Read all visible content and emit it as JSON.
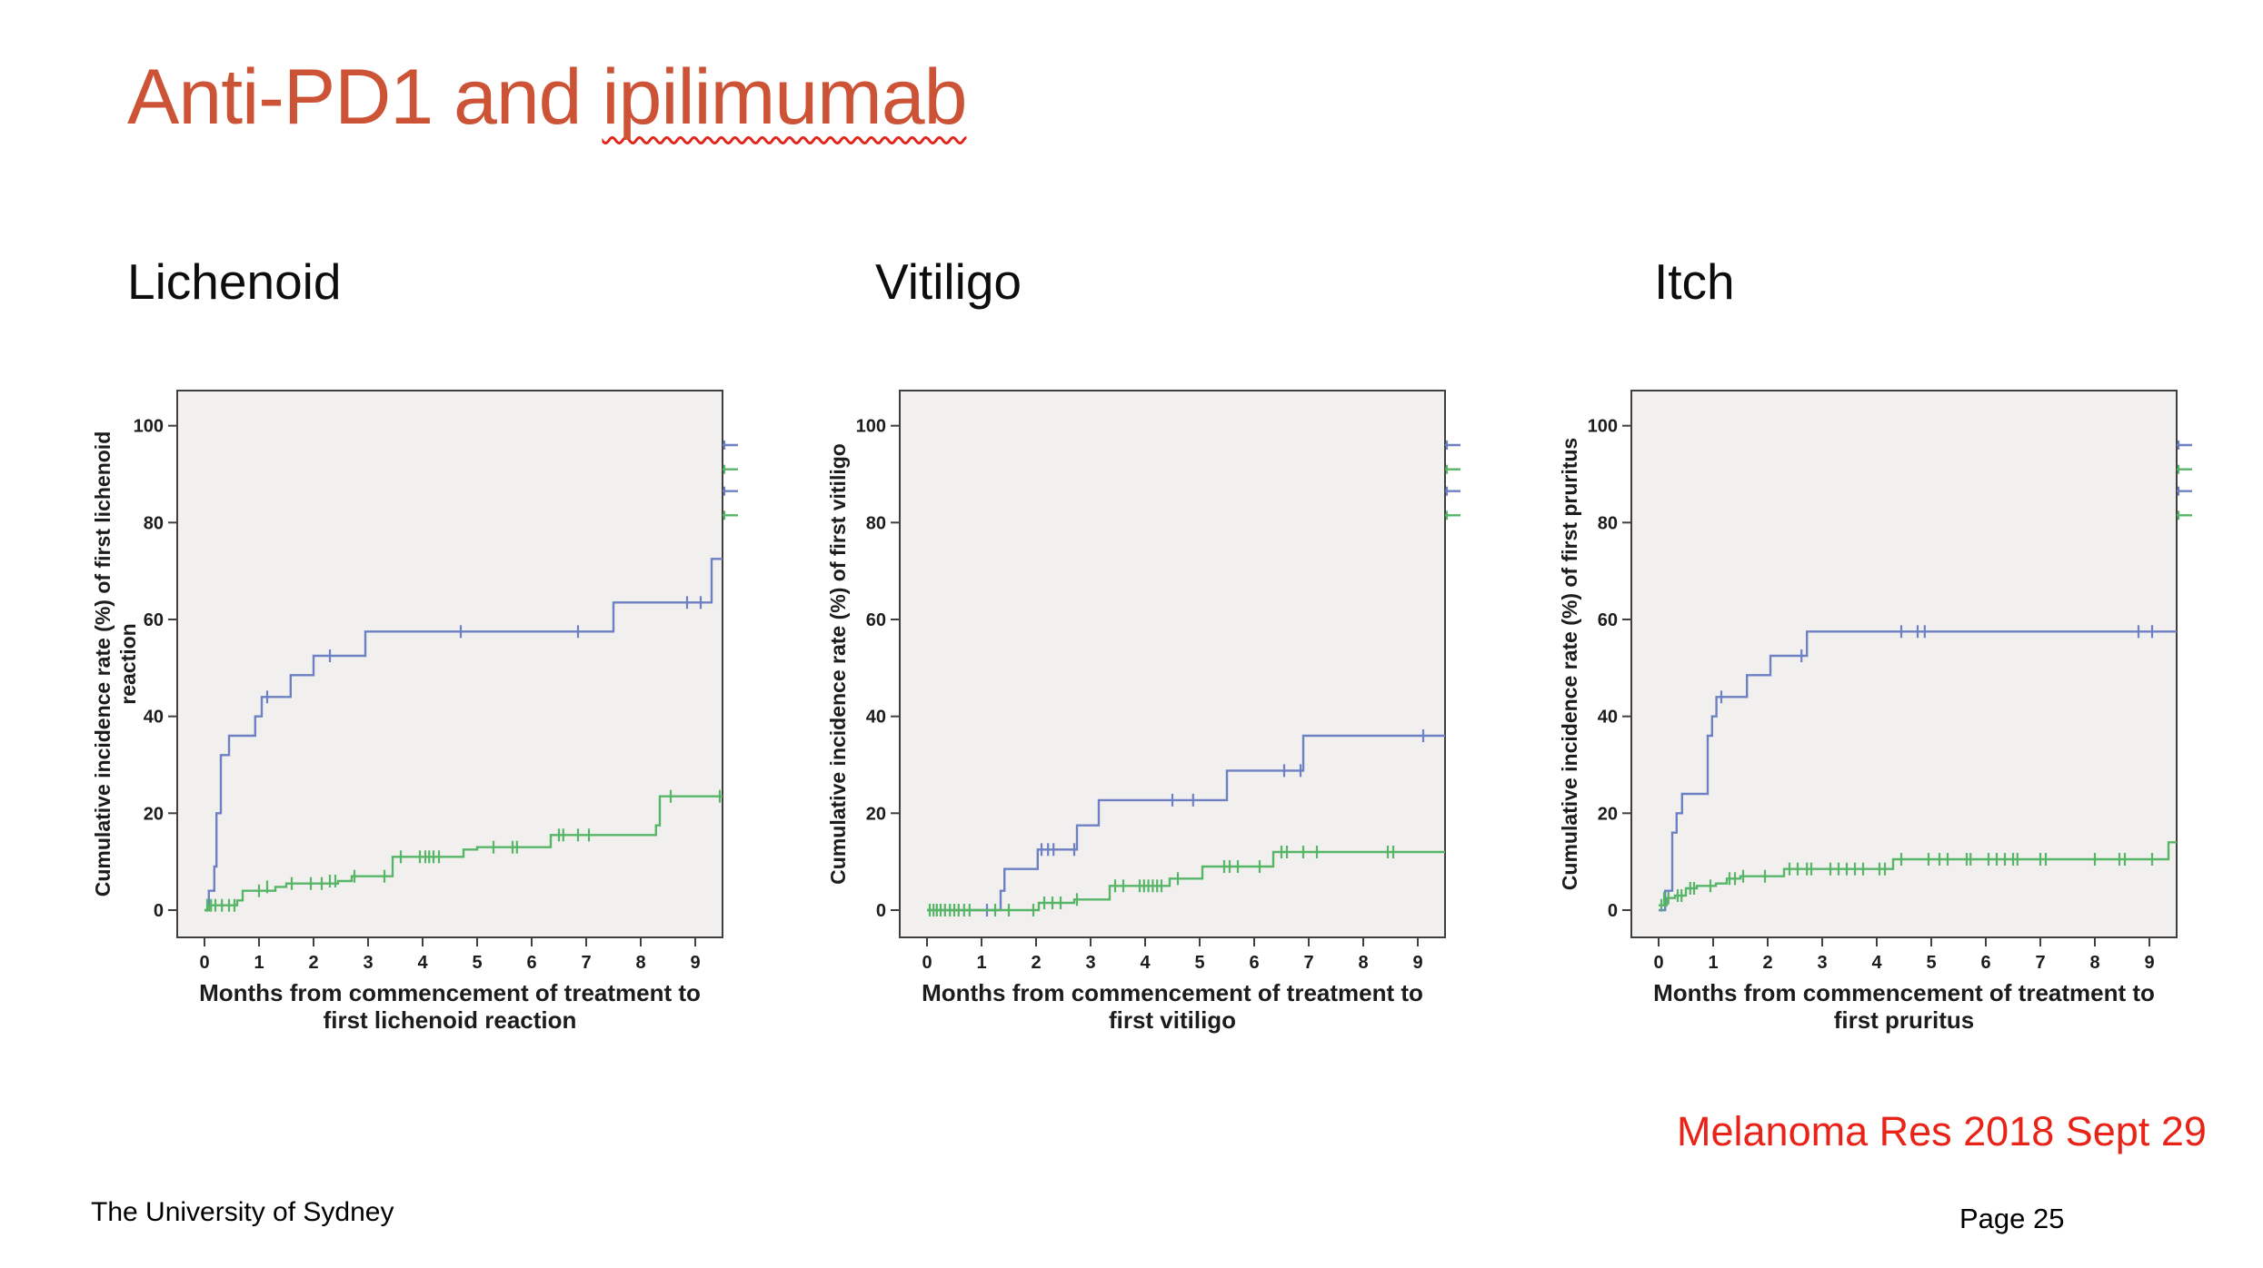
{
  "slide": {
    "title": {
      "prefix": "Anti-PD1 and ",
      "underlined_word": "ipilimumab",
      "color": "#cc5335",
      "squiggle_color": "#e0251a"
    },
    "footer_left": "The University of Sydney",
    "footer_right": "Page 25",
    "citation": {
      "text": "Melanoma Res 2018 Sept 29",
      "color": "#ea2318"
    }
  },
  "colors": {
    "series_blue": "#6d80c3",
    "series_green": "#57b567",
    "plot_bg": "#f1f0ee",
    "plot_border": "#3f3f3f",
    "axis_text": "#1c1c1c"
  },
  "chart_data": [
    {
      "type": "line",
      "section_label": "Lichenoid",
      "ylabel_lines": [
        "Cumulative incidence rate (%) of first lichenoid",
        "reaction"
      ],
      "xlabel_lines": [
        "Months from commencement of treatment to",
        "first lichenoid reaction"
      ],
      "xticks": [
        0,
        1,
        2,
        3,
        4,
        5,
        6,
        7,
        8,
        9
      ],
      "yticks": [
        0,
        20,
        40,
        60,
        80,
        100
      ],
      "xlim": [
        0,
        9.5
      ],
      "ylim": [
        0,
        100
      ],
      "grid": false,
      "series": [
        {
          "name": "blue",
          "steps": [
            [
              0,
              0
            ],
            [
              0.08,
              4
            ],
            [
              0.18,
              9
            ],
            [
              0.22,
              20
            ],
            [
              0.3,
              32
            ],
            [
              0.45,
              36
            ],
            [
              0.93,
              40
            ],
            [
              1.05,
              44
            ],
            [
              1.58,
              48.5
            ],
            [
              2.0,
              52.5
            ],
            [
              2.95,
              57.5
            ],
            [
              7.5,
              63.5
            ],
            [
              9.3,
              72.5
            ]
          ],
          "end_x": 9.5,
          "censors": [
            [
              1.15,
              44
            ],
            [
              2.3,
              52.5
            ],
            [
              4.7,
              57.5
            ],
            [
              6.85,
              57.5
            ],
            [
              8.85,
              63.5
            ],
            [
              9.1,
              63.5
            ]
          ]
        },
        {
          "name": "green",
          "steps": [
            [
              0,
              0
            ],
            [
              0.08,
              1
            ],
            [
              0.6,
              2
            ],
            [
              0.7,
              4
            ],
            [
              1.3,
              4.8
            ],
            [
              1.5,
              5.5
            ],
            [
              2.45,
              6
            ],
            [
              2.7,
              7
            ],
            [
              3.45,
              11
            ],
            [
              4.75,
              12.5
            ],
            [
              5.0,
              13
            ],
            [
              6.35,
              15.5
            ],
            [
              8.28,
              17.5
            ],
            [
              8.35,
              23.5
            ]
          ],
          "end_x": 9.5,
          "censors": [
            [
              0.05,
              1
            ],
            [
              0.12,
              1
            ],
            [
              0.2,
              1
            ],
            [
              0.32,
              1
            ],
            [
              0.45,
              1
            ],
            [
              0.55,
              1
            ],
            [
              1.0,
              4
            ],
            [
              1.15,
              4.8
            ],
            [
              1.6,
              5.5
            ],
            [
              1.95,
              5.5
            ],
            [
              2.15,
              5.5
            ],
            [
              2.3,
              6
            ],
            [
              2.4,
              6
            ],
            [
              2.75,
              7
            ],
            [
              3.3,
              7
            ],
            [
              3.6,
              11
            ],
            [
              3.95,
              11
            ],
            [
              4.05,
              11
            ],
            [
              4.12,
              11
            ],
            [
              4.2,
              11
            ],
            [
              4.3,
              11
            ],
            [
              5.3,
              13
            ],
            [
              5.65,
              13
            ],
            [
              5.73,
              13
            ],
            [
              6.5,
              15.5
            ],
            [
              6.58,
              15.5
            ],
            [
              6.85,
              15.5
            ],
            [
              7.05,
              15.5
            ],
            [
              8.55,
              23.5
            ],
            [
              9.45,
              23.5
            ]
          ]
        }
      ],
      "legend_stubs": [
        {
          "y": 96,
          "series": "blue"
        },
        {
          "y": 91,
          "series": "green"
        },
        {
          "y": 86.5,
          "series": "blue"
        },
        {
          "y": 81.5,
          "series": "green"
        }
      ]
    },
    {
      "type": "line",
      "section_label": "Vitiligo",
      "ylabel_lines": [
        "Cumulative incidence rate (%) of first vitiligo"
      ],
      "xlabel_lines": [
        "Months from commencement of treatment to",
        "first vitiligo"
      ],
      "xticks": [
        0,
        1,
        2,
        3,
        4,
        5,
        6,
        7,
        8,
        9
      ],
      "yticks": [
        0,
        20,
        40,
        60,
        80,
        100
      ],
      "xlim": [
        0,
        9.5
      ],
      "ylim": [
        0,
        100
      ],
      "grid": false,
      "series": [
        {
          "name": "blue",
          "steps": [
            [
              0,
              0
            ],
            [
              1.35,
              4
            ],
            [
              1.42,
              8.5
            ],
            [
              2.03,
              12.5
            ],
            [
              2.75,
              17.5
            ],
            [
              3.15,
              22.7
            ],
            [
              5.5,
              28.8
            ],
            [
              6.9,
              36
            ]
          ],
          "end_x": 9.5,
          "censors": [
            [
              1.1,
              0
            ],
            [
              2.1,
              12.5
            ],
            [
              2.22,
              12.5
            ],
            [
              2.32,
              12.5
            ],
            [
              2.7,
              12.5
            ],
            [
              4.5,
              22.7
            ],
            [
              4.88,
              22.7
            ],
            [
              6.55,
              28.8
            ],
            [
              6.85,
              28.8
            ],
            [
              9.1,
              36
            ]
          ]
        },
        {
          "name": "green",
          "steps": [
            [
              0,
              0
            ],
            [
              2.05,
              1.5
            ],
            [
              2.7,
              2.2
            ],
            [
              3.35,
              5
            ],
            [
              4.45,
              6.5
            ],
            [
              5.05,
              9
            ],
            [
              6.35,
              12
            ]
          ],
          "end_x": 9.5,
          "censors": [
            [
              0.05,
              0
            ],
            [
              0.12,
              0
            ],
            [
              0.18,
              0
            ],
            [
              0.25,
              0
            ],
            [
              0.33,
              0
            ],
            [
              0.42,
              0
            ],
            [
              0.5,
              0
            ],
            [
              0.58,
              0
            ],
            [
              0.68,
              0
            ],
            [
              0.78,
              0
            ],
            [
              1.25,
              0
            ],
            [
              1.5,
              0
            ],
            [
              1.95,
              0
            ],
            [
              2.15,
              1.5
            ],
            [
              2.3,
              1.5
            ],
            [
              2.45,
              1.5
            ],
            [
              2.75,
              2.2
            ],
            [
              3.45,
              5
            ],
            [
              3.6,
              5
            ],
            [
              3.9,
              5
            ],
            [
              3.98,
              5
            ],
            [
              4.06,
              5
            ],
            [
              4.14,
              5
            ],
            [
              4.22,
              5
            ],
            [
              4.3,
              5
            ],
            [
              4.6,
              6.5
            ],
            [
              5.45,
              9
            ],
            [
              5.55,
              9
            ],
            [
              5.7,
              9
            ],
            [
              6.1,
              9
            ],
            [
              6.5,
              12
            ],
            [
              6.6,
              12
            ],
            [
              6.9,
              12
            ],
            [
              7.15,
              12
            ],
            [
              8.45,
              12
            ],
            [
              8.55,
              12
            ]
          ]
        }
      ],
      "legend_stubs": [
        {
          "y": 96,
          "series": "blue"
        },
        {
          "y": 91,
          "series": "green"
        },
        {
          "y": 86.5,
          "series": "blue"
        },
        {
          "y": 81.5,
          "series": "green"
        }
      ]
    },
    {
      "type": "line",
      "section_label": "Itch",
      "ylabel_lines": [
        "Cumulative incidence rate (%) of first pruritus"
      ],
      "xlabel_lines": [
        "Months from commencement of treatment to",
        "first pruritus"
      ],
      "xticks": [
        0,
        1,
        2,
        3,
        4,
        5,
        6,
        7,
        8,
        9
      ],
      "yticks": [
        0,
        20,
        40,
        60,
        80,
        100
      ],
      "xlim": [
        0,
        9.5
      ],
      "ylim": [
        0,
        100
      ],
      "grid": false,
      "series": [
        {
          "name": "blue",
          "steps": [
            [
              0,
              0
            ],
            [
              0.12,
              4
            ],
            [
              0.25,
              16
            ],
            [
              0.33,
              20
            ],
            [
              0.43,
              24
            ],
            [
              0.9,
              36
            ],
            [
              0.98,
              40
            ],
            [
              1.06,
              44
            ],
            [
              1.62,
              48.5
            ],
            [
              2.05,
              52.5
            ],
            [
              2.72,
              57.5
            ]
          ],
          "end_x": 9.5,
          "censors": [
            [
              1.15,
              44
            ],
            [
              2.62,
              52.5
            ],
            [
              4.45,
              57.5
            ],
            [
              4.75,
              57.5
            ],
            [
              4.88,
              57.5
            ],
            [
              8.8,
              57.5
            ],
            [
              9.05,
              57.5
            ]
          ]
        },
        {
          "name": "green",
          "steps": [
            [
              0,
              1
            ],
            [
              0.15,
              2.5
            ],
            [
              0.3,
              3
            ],
            [
              0.5,
              4.5
            ],
            [
              0.7,
              5
            ],
            [
              1.05,
              5.5
            ],
            [
              1.25,
              6.5
            ],
            [
              1.5,
              7
            ],
            [
              2.3,
              8.5
            ],
            [
              4.3,
              10.5
            ],
            [
              9.35,
              14
            ]
          ],
          "end_x": 9.5,
          "censors": [
            [
              0.05,
              1
            ],
            [
              0.1,
              2.5
            ],
            [
              0.18,
              2.5
            ],
            [
              0.35,
              3
            ],
            [
              0.42,
              3
            ],
            [
              0.58,
              4.5
            ],
            [
              0.65,
              4.5
            ],
            [
              0.95,
              5
            ],
            [
              1.3,
              6.5
            ],
            [
              1.4,
              6.5
            ],
            [
              1.55,
              7
            ],
            [
              1.95,
              7
            ],
            [
              2.4,
              8.5
            ],
            [
              2.55,
              8.5
            ],
            [
              2.72,
              8.5
            ],
            [
              2.8,
              8.5
            ],
            [
              3.15,
              8.5
            ],
            [
              3.3,
              8.5
            ],
            [
              3.45,
              8.5
            ],
            [
              3.6,
              8.5
            ],
            [
              3.75,
              8.5
            ],
            [
              4.05,
              8.5
            ],
            [
              4.15,
              8.5
            ],
            [
              4.45,
              10.5
            ],
            [
              4.95,
              10.5
            ],
            [
              5.15,
              10.5
            ],
            [
              5.3,
              10.5
            ],
            [
              5.65,
              10.5
            ],
            [
              5.72,
              10.5
            ],
            [
              6.05,
              10.5
            ],
            [
              6.2,
              10.5
            ],
            [
              6.35,
              10.5
            ],
            [
              6.5,
              10.5
            ],
            [
              6.58,
              10.5
            ],
            [
              7.0,
              10.5
            ],
            [
              7.1,
              10.5
            ],
            [
              8.0,
              10.5
            ],
            [
              8.45,
              10.5
            ],
            [
              8.55,
              10.5
            ],
            [
              9.05,
              10.5
            ]
          ]
        }
      ],
      "legend_stubs": [
        {
          "y": 96,
          "series": "blue"
        },
        {
          "y": 91,
          "series": "green"
        },
        {
          "y": 86.5,
          "series": "blue"
        },
        {
          "y": 81.5,
          "series": "green"
        }
      ]
    }
  ]
}
